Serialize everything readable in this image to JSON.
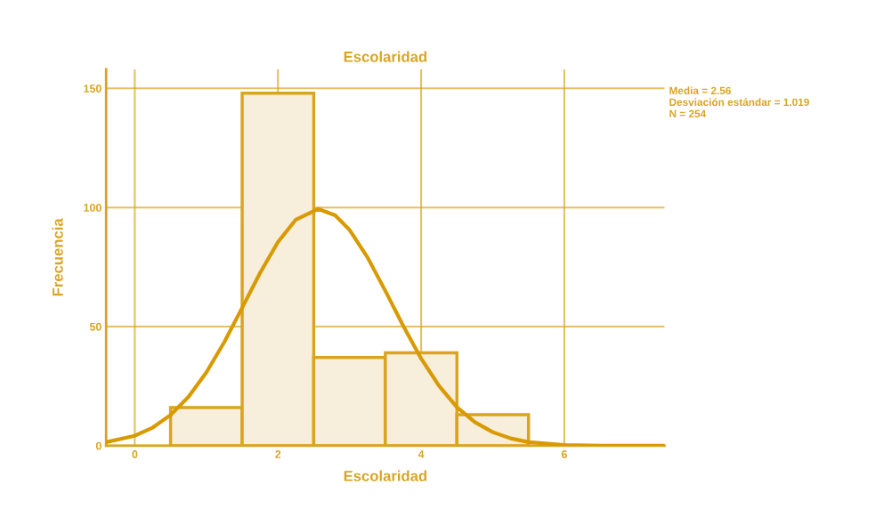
{
  "chart_data": {
    "type": "histogram",
    "title": "Escolaridad",
    "xlabel": "Escolaridad",
    "ylabel": "Frecuencia",
    "bins": [
      0.5,
      1.5,
      2.5,
      3.5,
      4.5,
      5.5
    ],
    "values": [
      16,
      148,
      37,
      39,
      13
    ],
    "color": "#f7eedb",
    "series": [
      {
        "type": "line",
        "color": "#d99a00",
        "x": [
          -0.4,
          0,
          0.25,
          0.5,
          0.75,
          1,
          1.25,
          1.5,
          1.75,
          2,
          2.25,
          2.56,
          2.8,
          3,
          3.25,
          3.5,
          3.75,
          4,
          4.25,
          4.5,
          4.75,
          5,
          5.25,
          5.5,
          6,
          6.5,
          7,
          7.4
        ],
        "values": [
          1.5,
          4.2,
          7.6,
          12.9,
          20.5,
          30.8,
          43.5,
          57.9,
          72.5,
          85.5,
          94.9,
          99.4,
          96.7,
          90.6,
          79.1,
          65.0,
          50.3,
          36.6,
          25.1,
          16.2,
          9.9,
          5.7,
          3.1,
          1.5,
          0.3,
          0,
          0,
          0
        ]
      }
    ],
    "annotations": [
      "Media = 2.56",
      "Desviación estándar = 1.019",
      "N = 254"
    ],
    "xlim": [
      -0.4,
      7.4
    ],
    "ylim": [
      0,
      158
    ],
    "xticks": [
      0,
      2,
      4,
      6
    ],
    "yticks": [
      0,
      50,
      100,
      150
    ],
    "grid": true,
    "legend": false
  }
}
